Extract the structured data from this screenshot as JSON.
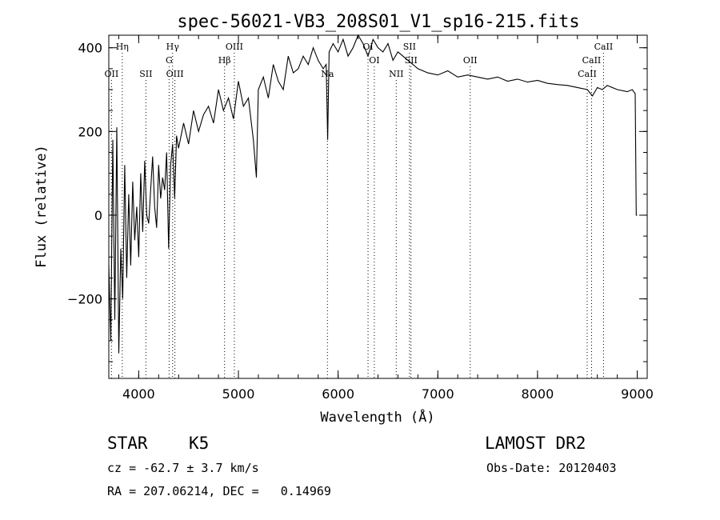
{
  "chart_data": {
    "type": "line",
    "title": "spec-56021-VB3_208S01_V1_sp16-215.fits",
    "xlabel": "Wavelength (Å)",
    "ylabel": "Flux (relative)",
    "xlim": [
      3700,
      9100
    ],
    "ylim": [
      -390,
      430
    ],
    "x_ticks": [
      4000,
      5000,
      6000,
      7000,
      8000,
      9000
    ],
    "y_ticks": [
      -200,
      0,
      200,
      400
    ],
    "x_minor_step": 200,
    "y_minor_step": 50,
    "grid": false,
    "series": [
      {
        "color": "#000000",
        "x": [
          3700,
          3720,
          3740,
          3760,
          3780,
          3800,
          3820,
          3840,
          3860,
          3880,
          3900,
          3920,
          3940,
          3960,
          3980,
          4000,
          4020,
          4040,
          4060,
          4080,
          4100,
          4120,
          4140,
          4160,
          4180,
          4200,
          4220,
          4240,
          4260,
          4280,
          4300,
          4320,
          4340,
          4360,
          4380,
          4400,
          4450,
          4500,
          4550,
          4600,
          4650,
          4700,
          4750,
          4800,
          4850,
          4900,
          4950,
          5000,
          5050,
          5100,
          5150,
          5180,
          5200,
          5250,
          5300,
          5350,
          5400,
          5450,
          5500,
          5550,
          5600,
          5650,
          5700,
          5750,
          5800,
          5850,
          5880,
          5895,
          5910,
          5950,
          6000,
          6050,
          6100,
          6150,
          6200,
          6250,
          6300,
          6350,
          6400,
          6450,
          6500,
          6550,
          6600,
          6650,
          6700,
          6750,
          6800,
          6900,
          7000,
          7100,
          7200,
          7300,
          7400,
          7500,
          7600,
          7700,
          7800,
          7900,
          8000,
          8100,
          8200,
          8300,
          8400,
          8500,
          8550,
          8600,
          8650,
          8700,
          8800,
          8900,
          8950,
          8980,
          8990,
          9000
        ],
        "values": [
          -120,
          -300,
          180,
          -250,
          210,
          -330,
          -80,
          -200,
          120,
          -150,
          50,
          -120,
          80,
          -60,
          20,
          -100,
          100,
          -40,
          130,
          0,
          -20,
          60,
          140,
          20,
          -30,
          120,
          40,
          90,
          60,
          150,
          -80,
          120,
          170,
          40,
          190,
          160,
          220,
          170,
          250,
          200,
          240,
          260,
          220,
          300,
          250,
          280,
          230,
          320,
          260,
          280,
          180,
          90,
          300,
          330,
          280,
          360,
          320,
          300,
          380,
          340,
          350,
          380,
          360,
          400,
          370,
          350,
          360,
          180,
          390,
          410,
          390,
          420,
          380,
          400,
          430,
          410,
          380,
          420,
          400,
          390,
          410,
          370,
          390,
          380,
          370,
          360,
          350,
          340,
          335,
          345,
          330,
          335,
          330,
          325,
          330,
          320,
          325,
          318,
          322,
          315,
          312,
          310,
          305,
          300,
          285,
          305,
          300,
          310,
          300,
          295,
          300,
          290,
          0,
          0
        ]
      }
    ],
    "lines": [
      {
        "label": "Hη",
        "wavelength": 3835,
        "row": 1
      },
      {
        "label": "OII",
        "wavelength": 3727,
        "row": 3
      },
      {
        "label": "SII",
        "wavelength": 4072,
        "row": 3
      },
      {
        "label": "Hγ",
        "wavelength": 4340,
        "row": 1
      },
      {
        "label": "G",
        "wavelength": 4305,
        "row": 2
      },
      {
        "label": "OIII",
        "wavelength": 4363,
        "row": 3
      },
      {
        "label": "OIII",
        "wavelength": 4959,
        "row": 1
      },
      {
        "label": "Hβ",
        "wavelength": 4861,
        "row": 2
      },
      {
        "label": "Na",
        "wavelength": 5893,
        "row": 3
      },
      {
        "label": "OI",
        "wavelength": 6300,
        "row": 1
      },
      {
        "label": "OI",
        "wavelength": 6363,
        "row": 2
      },
      {
        "label": "NII",
        "wavelength": 6583,
        "row": 3
      },
      {
        "label": "SII",
        "wavelength": 6716,
        "row": 1
      },
      {
        "label": "SII",
        "wavelength": 6731,
        "row": 2
      },
      {
        "label": "OII",
        "wavelength": 7325,
        "row": 2
      },
      {
        "label": "CaII",
        "wavelength": 8662,
        "row": 1
      },
      {
        "label": "CaII",
        "wavelength": 8542,
        "row": 2
      },
      {
        "label": "CaII",
        "wavelength": 8498,
        "row": 3
      }
    ]
  },
  "footer": {
    "class_label": "STAR",
    "subclass": "K5",
    "survey": "LAMOST DR2",
    "redshift": "cz = -62.7 ± 3.7 km/s",
    "obs_date": "Obs-Date: 20120403",
    "coords": "RA = 207.06214, DEC =   0.14969"
  }
}
